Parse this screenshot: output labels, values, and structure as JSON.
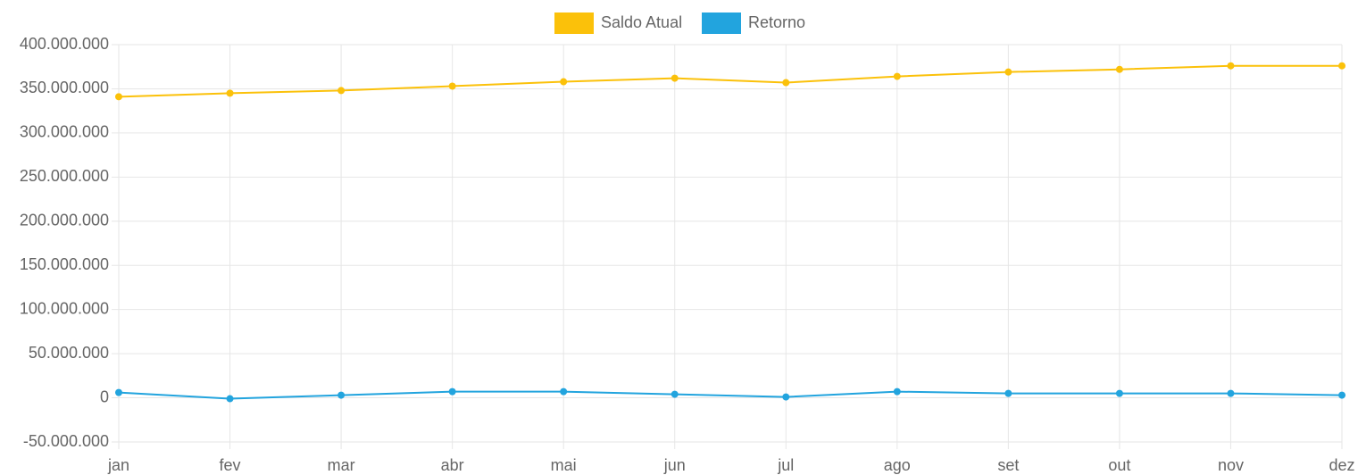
{
  "chart_data": {
    "type": "line",
    "categories": [
      "jan",
      "fev",
      "mar",
      "abr",
      "mai",
      "jun",
      "jul",
      "ago",
      "set",
      "out",
      "nov",
      "dez"
    ],
    "series": [
      {
        "name": "Saldo Atual",
        "color": "#fbc10a",
        "values": [
          341000000,
          345000000,
          348000000,
          353000000,
          358000000,
          362000000,
          357000000,
          364000000,
          369000000,
          372000000,
          376000000,
          376000000
        ]
      },
      {
        "name": "Retorno",
        "color": "#22a4de",
        "values": [
          6000000,
          -1000000,
          3000000,
          7000000,
          7000000,
          4000000,
          1000000,
          7000000,
          5000000,
          5000000,
          5000000,
          3000000
        ]
      }
    ],
    "ylim": [
      -50000000,
      400000000
    ],
    "yticks": [
      {
        "value": -50000000,
        "label": "-50.000.000"
      },
      0,
      {
        "value": 50000000,
        "label": "50.000.000"
      },
      {
        "value": 100000000,
        "label": "100.000.000"
      },
      {
        "value": 150000000,
        "label": "150.000.000"
      },
      {
        "value": 200000000,
        "label": "200.000.000"
      },
      {
        "value": 250000000,
        "label": "250.000.000"
      },
      {
        "value": 300000000,
        "label": "300.000.000"
      },
      {
        "value": 350000000,
        "label": "350.000.000"
      },
      {
        "value": 400000000,
        "label": "400.000.000"
      }
    ],
    "grid": true,
    "legend": "top"
  }
}
